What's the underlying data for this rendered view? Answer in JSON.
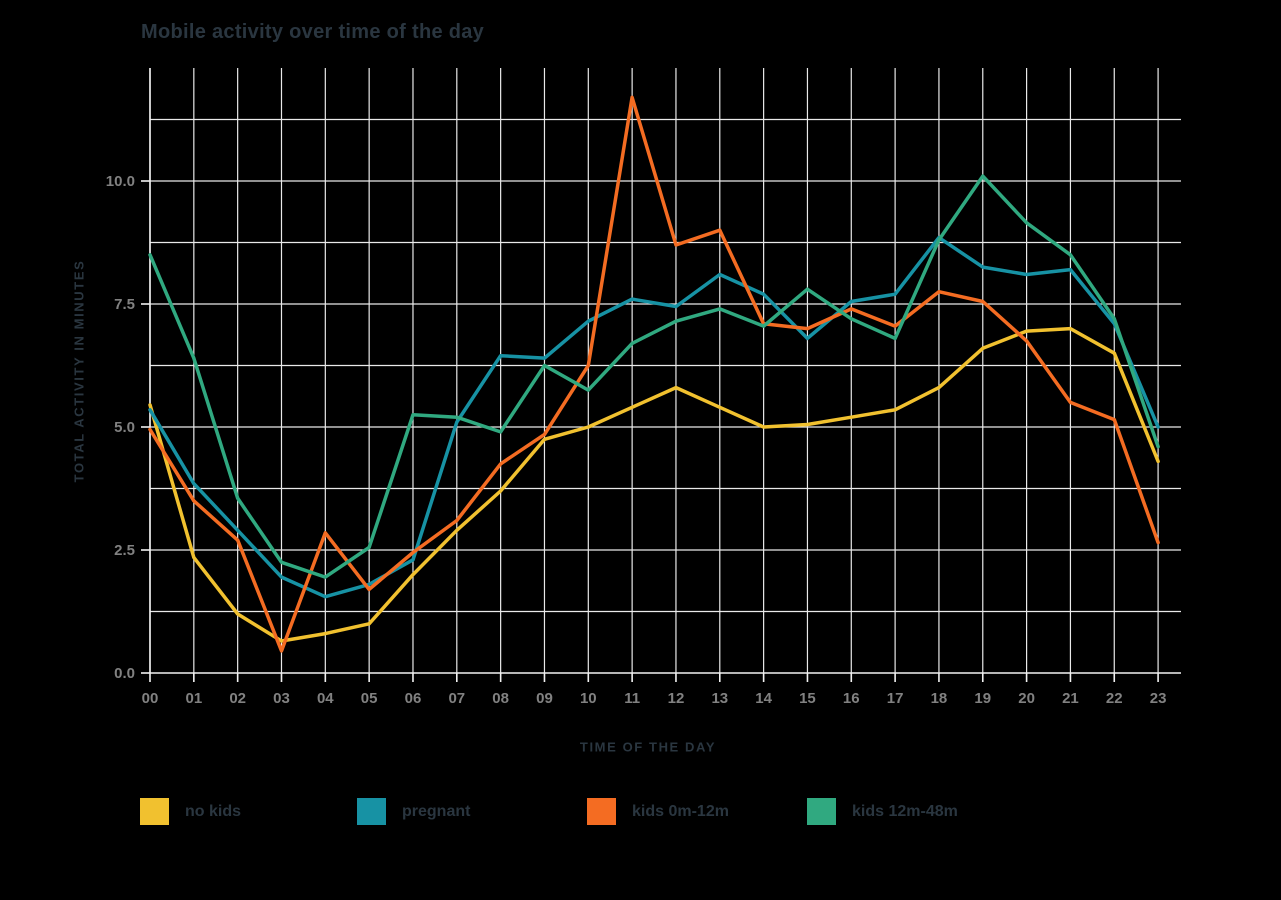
{
  "chart_data": {
    "type": "line",
    "title": "Mobile activity over time of the day",
    "xlabel": "TIME OF THE DAY",
    "ylabel": "TOTAL ACTIVITY IN MINUTES",
    "x_ticks": [
      "00",
      "01",
      "02",
      "03",
      "04",
      "05",
      "06",
      "07",
      "08",
      "09",
      "10",
      "11",
      "12",
      "13",
      "14",
      "15",
      "16",
      "17",
      "18",
      "19",
      "20",
      "21",
      "22",
      "23"
    ],
    "y_ticks": [
      "0.0",
      "2.5",
      "5.0",
      "7.5",
      "10.0"
    ],
    "ylim": [
      0,
      12.3
    ],
    "y_minor_grid_step": 1.25,
    "grid": true,
    "legend_position": "bottom",
    "series": [
      {
        "name": "no kids",
        "color": "#f1c12f",
        "values": [
          5.45,
          2.35,
          1.2,
          0.65,
          0.8,
          1.0,
          2.0,
          2.9,
          3.7,
          4.75,
          5.0,
          5.4,
          5.8,
          5.4,
          5.0,
          5.05,
          5.2,
          5.35,
          5.8,
          6.6,
          6.95,
          7.0,
          6.5,
          4.3
        ]
      },
      {
        "name": "pregnant",
        "color": "#1792a4",
        "values": [
          5.35,
          3.85,
          2.9,
          1.95,
          1.55,
          1.8,
          2.3,
          5.1,
          6.45,
          6.4,
          7.15,
          7.6,
          7.45,
          8.1,
          7.7,
          6.8,
          7.55,
          7.7,
          8.85,
          8.25,
          8.1,
          8.2,
          7.1,
          5.0
        ]
      },
      {
        "name": "kids 0m-12m",
        "color": "#f46c22",
        "values": [
          4.95,
          3.5,
          2.7,
          0.45,
          2.85,
          1.7,
          2.45,
          3.1,
          4.25,
          4.85,
          6.25,
          11.7,
          8.7,
          9.0,
          7.1,
          7.0,
          7.4,
          7.05,
          7.75,
          7.55,
          6.75,
          5.5,
          5.15,
          2.65
        ]
      },
      {
        "name": "kids 12m-48m",
        "color": "#30a980",
        "values": [
          8.5,
          6.4,
          3.55,
          2.25,
          1.95,
          2.55,
          5.25,
          5.2,
          4.9,
          6.25,
          5.75,
          6.7,
          7.15,
          7.4,
          7.05,
          7.8,
          7.2,
          6.8,
          8.8,
          10.1,
          9.15,
          8.5,
          7.2,
          4.6
        ]
      }
    ]
  },
  "colors": {
    "background": "#000000",
    "grid": "#e9e9e9",
    "axis": "#f2f2f2",
    "tick_label": "#818181",
    "heading_text": "#2a3640"
  }
}
